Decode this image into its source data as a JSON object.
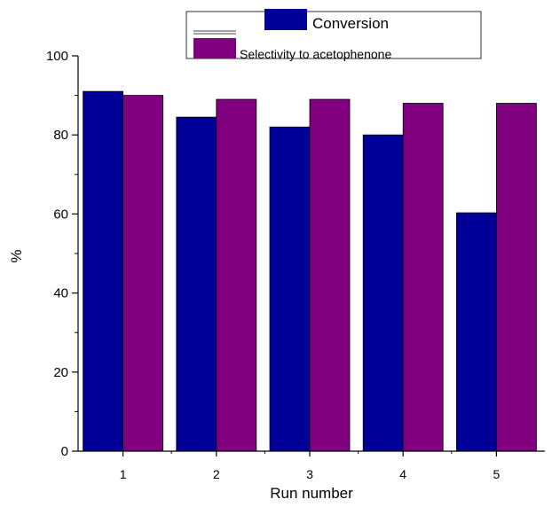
{
  "chart_data": {
    "type": "bar",
    "categories": [
      "1",
      "2",
      "3",
      "4",
      "5"
    ],
    "series": [
      {
        "name": "Conversion",
        "values": [
          91,
          84.5,
          82,
          80,
          60.3
        ],
        "color": "#000099"
      },
      {
        "name": "Selectivity to acetophenone",
        "values": [
          90,
          89,
          89,
          88,
          88
        ],
        "color": "#800080"
      }
    ],
    "xlabel": "Run number",
    "ylabel": "%",
    "ylim": [
      0,
      100
    ],
    "yticks": [
      "0",
      "20",
      "40",
      "60",
      "80",
      "100"
    ],
    "grid": false,
    "legend_position": "top"
  }
}
